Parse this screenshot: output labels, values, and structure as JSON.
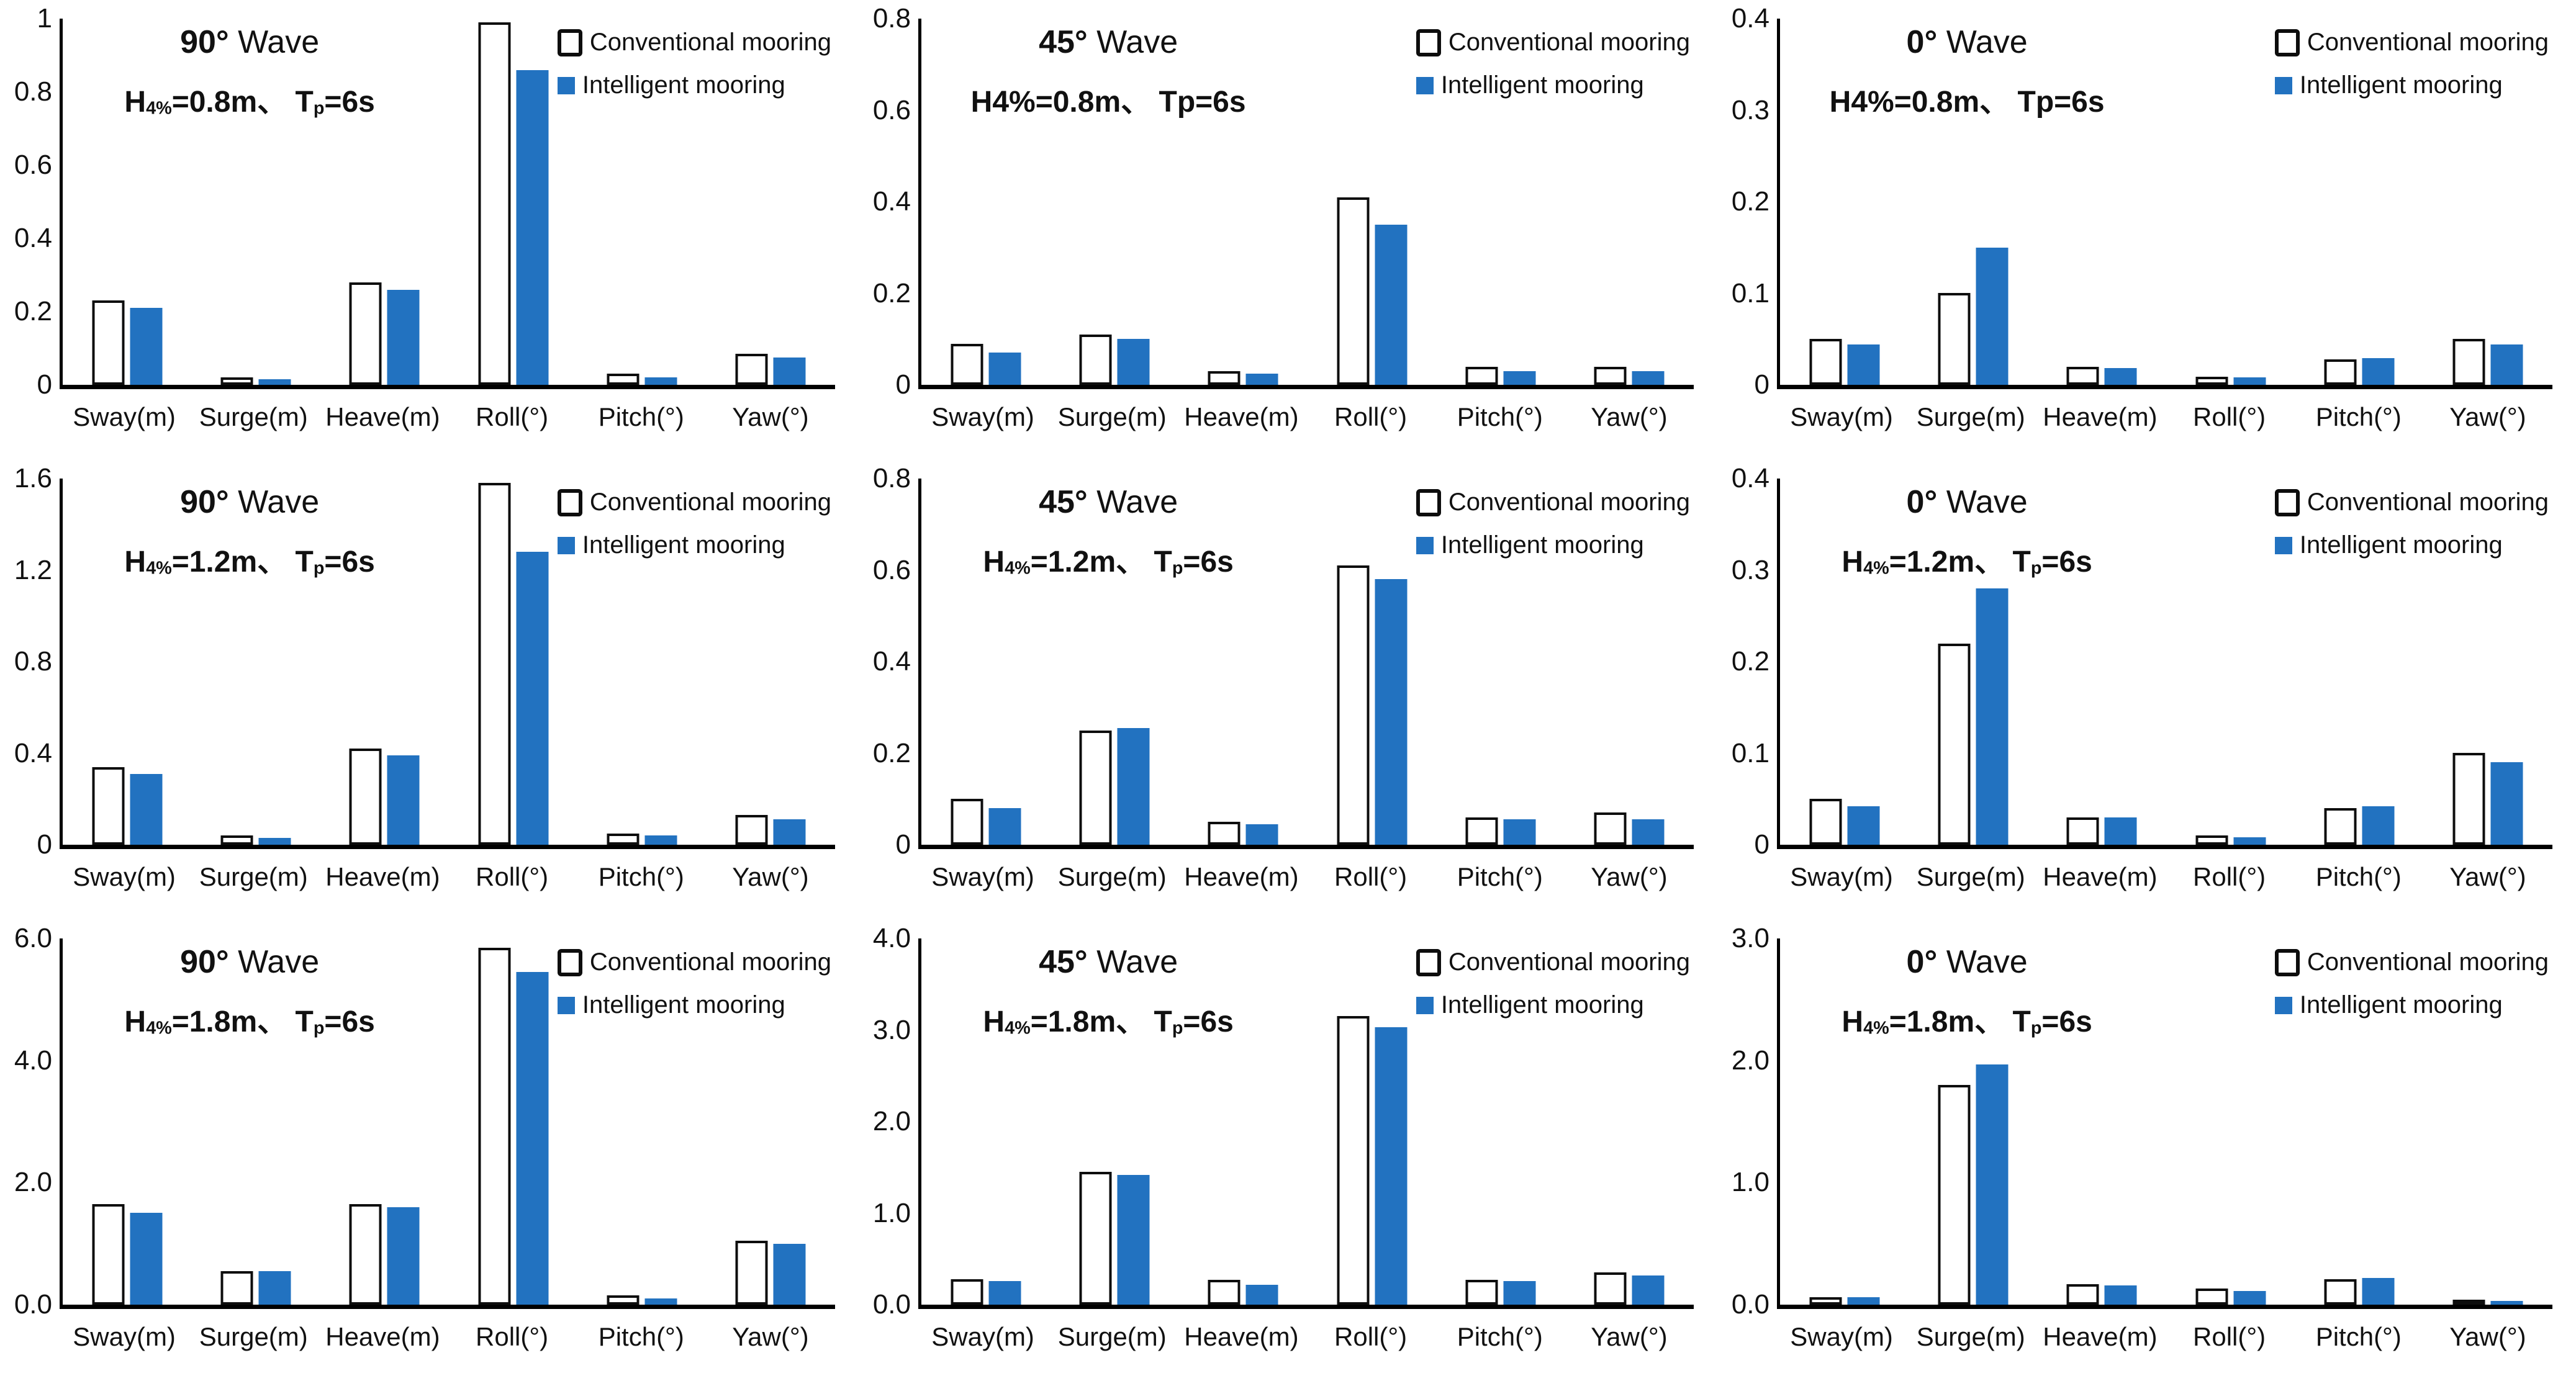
{
  "colors": {
    "intelligent_blue": "#2272c0",
    "conventional_fill": "#ffffff",
    "axis_black": "#0d0d0d"
  },
  "chart_data": [
    {
      "type": "bar",
      "title_angle": "90°",
      "title_wave": "Wave",
      "condition_parts": [
        {
          "t": "H"
        },
        {
          "t": "4%",
          "sub": true
        },
        {
          "t": "=0.8m、 "
        },
        {
          "t": "T"
        },
        {
          "t": "p",
          "sub": true
        },
        {
          "t": "=6s"
        }
      ],
      "ylim": [
        0,
        1
      ],
      "yticks": [
        "1",
        "0.8",
        "0.6",
        "0.4",
        "0.2",
        "0"
      ],
      "categories": [
        "Sway(m)",
        "Surge(m)",
        "Heave(m)",
        "Roll(°)",
        "Pitch(°)",
        "Yaw(°)"
      ],
      "series": [
        {
          "name": "Conventional mooring",
          "values": [
            0.23,
            0.02,
            0.28,
            0.99,
            0.03,
            0.085
          ]
        },
        {
          "name": "Intelligent mooring",
          "values": [
            0.21,
            0.015,
            0.26,
            0.86,
            0.02,
            0.075
          ]
        }
      ],
      "legend_position": "top-right",
      "grid": false
    },
    {
      "type": "bar",
      "title_angle": "45°",
      "title_wave": "Wave",
      "condition_parts": [
        {
          "t": "H"
        },
        {
          "t": "4%"
        },
        {
          "t": "=0.8m、 "
        },
        {
          "t": "T"
        },
        {
          "t": "p"
        },
        {
          "t": "=6s"
        }
      ],
      "ylim": [
        0,
        0.8
      ],
      "yticks": [
        "0.8",
        "0.6",
        "0.4",
        "0.2",
        "0"
      ],
      "categories": [
        "Sway(m)",
        "Surge(m)",
        "Heave(m)",
        "Roll(°)",
        "Pitch(°)",
        "Yaw(°)"
      ],
      "series": [
        {
          "name": "Conventional mooring",
          "values": [
            0.09,
            0.11,
            0.03,
            0.41,
            0.04,
            0.04
          ]
        },
        {
          "name": "Intelligent mooring",
          "values": [
            0.07,
            0.1,
            0.025,
            0.35,
            0.03,
            0.03
          ]
        }
      ],
      "legend_position": "top-right",
      "grid": false
    },
    {
      "type": "bar",
      "title_angle": "0°",
      "title_wave": "Wave",
      "condition_parts": [
        {
          "t": "H"
        },
        {
          "t": "4%"
        },
        {
          "t": "=0.8m、 "
        },
        {
          "t": "T"
        },
        {
          "t": "p"
        },
        {
          "t": "=6s"
        }
      ],
      "ylim": [
        0,
        0.4
      ],
      "yticks": [
        "0.4",
        "0.3",
        "0.2",
        "0.1",
        "0"
      ],
      "categories": [
        "Sway(m)",
        "Surge(m)",
        "Heave(m)",
        "Roll(°)",
        "Pitch(°)",
        "Yaw(°)"
      ],
      "series": [
        {
          "name": "Conventional mooring",
          "values": [
            0.05,
            0.1,
            0.02,
            0.009,
            0.028,
            0.05
          ]
        },
        {
          "name": "Intelligent mooring",
          "values": [
            0.044,
            0.15,
            0.018,
            0.008,
            0.029,
            0.044
          ]
        }
      ],
      "legend_position": "top-right",
      "grid": false
    },
    {
      "type": "bar",
      "title_angle": "90°",
      "title_wave": "Wave",
      "condition_parts": [
        {
          "t": "H"
        },
        {
          "t": "4%",
          "sub": true
        },
        {
          "t": "=1.2m、 "
        },
        {
          "t": "T"
        },
        {
          "t": "p",
          "sub": true
        },
        {
          "t": "=6s"
        }
      ],
      "ylim": [
        0,
        1.6
      ],
      "yticks": [
        "1.6",
        "1.2",
        "0.8",
        "0.4",
        "0"
      ],
      "categories": [
        "Sway(m)",
        "Surge(m)",
        "Heave(m)",
        "Roll(°)",
        "Pitch(°)",
        "Yaw(°)"
      ],
      "series": [
        {
          "name": "Conventional mooring",
          "values": [
            0.34,
            0.04,
            0.42,
            1.58,
            0.05,
            0.13
          ]
        },
        {
          "name": "Intelligent mooring",
          "values": [
            0.31,
            0.03,
            0.39,
            1.28,
            0.04,
            0.11
          ]
        }
      ],
      "legend_position": "top-right",
      "grid": false
    },
    {
      "type": "bar",
      "title_angle": "45°",
      "title_wave": "Wave",
      "condition_parts": [
        {
          "t": "H"
        },
        {
          "t": "4%",
          "sub": true
        },
        {
          "t": "=1.2m、 "
        },
        {
          "t": "T"
        },
        {
          "t": "p",
          "sub": true
        },
        {
          "t": "=6s"
        }
      ],
      "ylim": [
        0,
        0.8
      ],
      "yticks": [
        "0.8",
        "0.6",
        "0.4",
        "0.2",
        "0"
      ],
      "categories": [
        "Sway(m)",
        "Surge(m)",
        "Heave(m)",
        "Roll(°)",
        "Pitch(°)",
        "Yaw(°)"
      ],
      "series": [
        {
          "name": "Conventional mooring",
          "values": [
            0.1,
            0.25,
            0.05,
            0.61,
            0.06,
            0.07
          ]
        },
        {
          "name": "Intelligent mooring",
          "values": [
            0.08,
            0.255,
            0.045,
            0.58,
            0.055,
            0.055
          ]
        }
      ],
      "legend_position": "top-right",
      "grid": false
    },
    {
      "type": "bar",
      "title_angle": "0°",
      "title_wave": "Wave",
      "condition_parts": [
        {
          "t": "H"
        },
        {
          "t": "4%",
          "sub": true
        },
        {
          "t": "=1.2m、 "
        },
        {
          "t": "T"
        },
        {
          "t": "p",
          "sub": true
        },
        {
          "t": "=6s"
        }
      ],
      "ylim": [
        0,
        0.4
      ],
      "yticks": [
        "0.4",
        "0.3",
        "0.2",
        "0.1",
        "0"
      ],
      "categories": [
        "Sway(m)",
        "Surge(m)",
        "Heave(m)",
        "Roll(°)",
        "Pitch(°)",
        "Yaw(°)"
      ],
      "series": [
        {
          "name": "Conventional mooring",
          "values": [
            0.05,
            0.22,
            0.03,
            0.01,
            0.04,
            0.1
          ]
        },
        {
          "name": "Intelligent mooring",
          "values": [
            0.042,
            0.28,
            0.03,
            0.008,
            0.042,
            0.09
          ]
        }
      ],
      "legend_position": "top-right",
      "grid": false
    },
    {
      "type": "bar",
      "title_angle": "90°",
      "title_wave": "Wave",
      "condition_parts": [
        {
          "t": "H"
        },
        {
          "t": "4%",
          "sub": true
        },
        {
          "t": "=1.8m、 "
        },
        {
          "t": "T"
        },
        {
          "t": "p",
          "sub": true
        },
        {
          "t": "=6s"
        }
      ],
      "ylim": [
        0,
        6
      ],
      "yticks": [
        "6.0",
        "4.0",
        "2.0",
        "0.0"
      ],
      "categories": [
        "Sway(m)",
        "Surge(m)",
        "Heave(m)",
        "Roll(°)",
        "Pitch(°)",
        "Yaw(°)"
      ],
      "series": [
        {
          "name": "Conventional mooring",
          "values": [
            1.65,
            0.55,
            1.65,
            5.85,
            0.15,
            1.05
          ]
        },
        {
          "name": "Intelligent mooring",
          "values": [
            1.5,
            0.55,
            1.6,
            5.45,
            0.1,
            1.0
          ]
        }
      ],
      "legend_position": "top-right",
      "grid": false
    },
    {
      "type": "bar",
      "title_angle": "45°",
      "title_wave": "Wave",
      "condition_parts": [
        {
          "t": "H"
        },
        {
          "t": "4%",
          "sub": true
        },
        {
          "t": "=1.8m、 "
        },
        {
          "t": "T"
        },
        {
          "t": "p",
          "sub": true
        },
        {
          "t": "=6s"
        }
      ],
      "ylim": [
        0,
        4
      ],
      "yticks": [
        "4.0",
        "3.0",
        "2.0",
        "1.0",
        "0.0"
      ],
      "categories": [
        "Sway(m)",
        "Surge(m)",
        "Heave(m)",
        "Roll(°)",
        "Pitch(°)",
        "Yaw(°)"
      ],
      "series": [
        {
          "name": "Conventional mooring",
          "values": [
            0.28,
            1.45,
            0.27,
            3.15,
            0.27,
            0.35
          ]
        },
        {
          "name": "Intelligent mooring",
          "values": [
            0.26,
            1.42,
            0.22,
            3.03,
            0.26,
            0.32
          ]
        }
      ],
      "legend_position": "top-right",
      "grid": false
    },
    {
      "type": "bar",
      "title_angle": "0°",
      "title_wave": "Wave",
      "condition_parts": [
        {
          "t": "H"
        },
        {
          "t": "4%",
          "sub": true
        },
        {
          "t": "=1.8m、 "
        },
        {
          "t": "T"
        },
        {
          "t": "p",
          "sub": true
        },
        {
          "t": "=6s"
        }
      ],
      "ylim": [
        0,
        3
      ],
      "yticks": [
        "3.0",
        "2.0",
        "1.0",
        "0.0"
      ],
      "categories": [
        "Sway(m)",
        "Surge(m)",
        "Heave(m)",
        "Roll(°)",
        "Pitch(°)",
        "Yaw(°)"
      ],
      "series": [
        {
          "name": "Conventional mooring",
          "values": [
            0.06,
            1.8,
            0.17,
            0.13,
            0.21,
            0.03
          ]
        },
        {
          "name": "Intelligent mooring",
          "values": [
            0.06,
            1.97,
            0.16,
            0.11,
            0.22,
            0.02
          ]
        }
      ],
      "legend_position": "top-right",
      "grid": false
    }
  ]
}
